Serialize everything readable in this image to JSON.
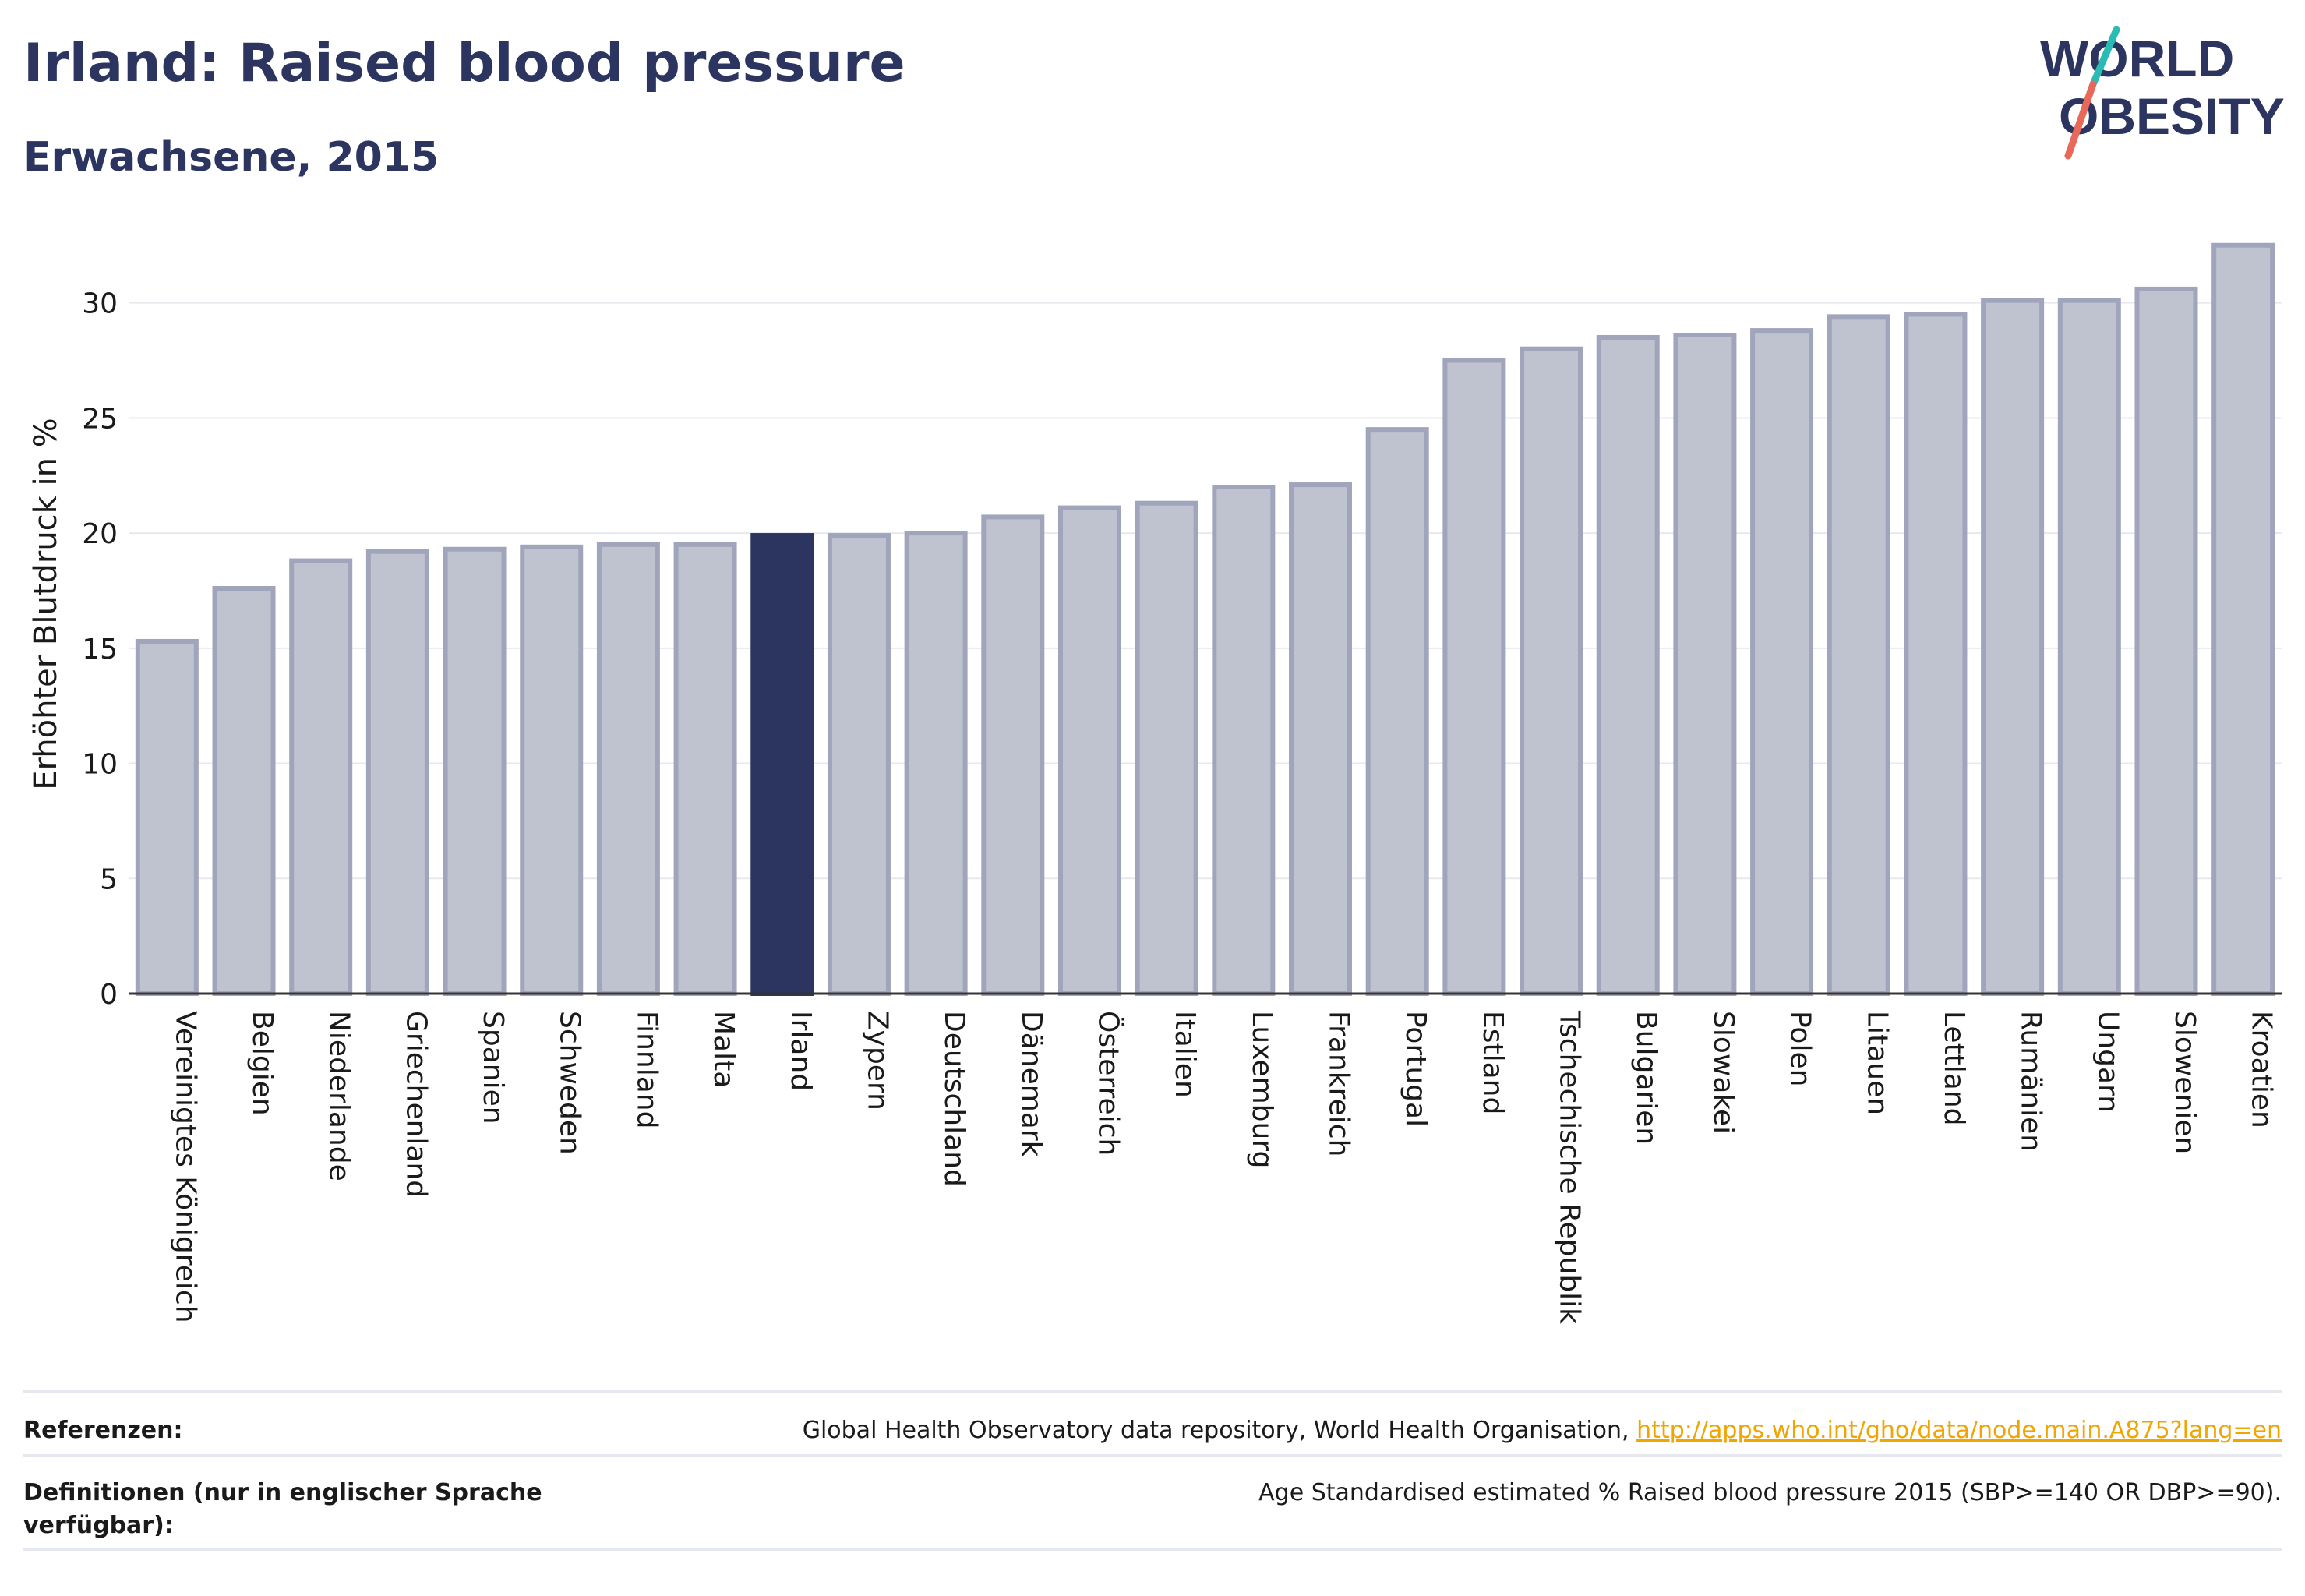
{
  "header": {
    "title": "Irland: Raised blood pressure",
    "subtitle": "Erwachsene, 2015"
  },
  "logo": {
    "line1": "WORLD",
    "line2": "OBESITY",
    "colors": {
      "text": "#2c3560",
      "slash_top": "#2bbbb5",
      "slash_bottom": "#e8685a"
    }
  },
  "chart_data": {
    "type": "bar",
    "ylabel": "Erhöhter Blutdruck in %",
    "xlabel": "",
    "ylim": [
      0,
      33
    ],
    "yticks": [
      0,
      5,
      10,
      15,
      20,
      25,
      30
    ],
    "grid": true,
    "highlight": "Irland",
    "colors": {
      "bar": "#bfc2cf",
      "bar_edge": "#a0a5bb",
      "highlight": "#2c3560",
      "grid": "#e8e9ef",
      "axis": "#333333"
    },
    "categories": [
      "Vereinigtes Königreich",
      "Belgien",
      "Niederlande",
      "Griechenland",
      "Spanien",
      "Schweden",
      "Finnland",
      "Malta",
      "Irland",
      "Zypern",
      "Deutschland",
      "Dänemark",
      "Österreich",
      "Italien",
      "Luxemburg",
      "Frankreich",
      "Portugal",
      "Estland",
      "Tschechische Republik",
      "Bulgarien",
      "Slowakei",
      "Polen",
      "Litauen",
      "Lettland",
      "Rumänien",
      "Ungarn",
      "Slowenien",
      "Kroatien"
    ],
    "values": [
      15.3,
      17.6,
      18.8,
      19.2,
      19.3,
      19.4,
      19.5,
      19.5,
      19.9,
      19.9,
      20.0,
      20.7,
      21.1,
      21.3,
      22.0,
      22.1,
      24.5,
      27.5,
      28.0,
      28.5,
      28.6,
      28.8,
      29.4,
      29.5,
      30.1,
      30.1,
      30.6,
      32.5
    ]
  },
  "footer": {
    "references_label": "Referenzen:",
    "references_text": "Global Health Observatory data repository, World Health Organisation,",
    "references_link": "http://apps.who.int/gho/data/node.main.A875?lang=en",
    "definitions_label": "Definitionen (nur in englischer Sprache verfügbar):",
    "definitions_text": "Age Standardised estimated % Raised blood pressure 2015 (SBP>=140 OR DBP>=90)."
  }
}
